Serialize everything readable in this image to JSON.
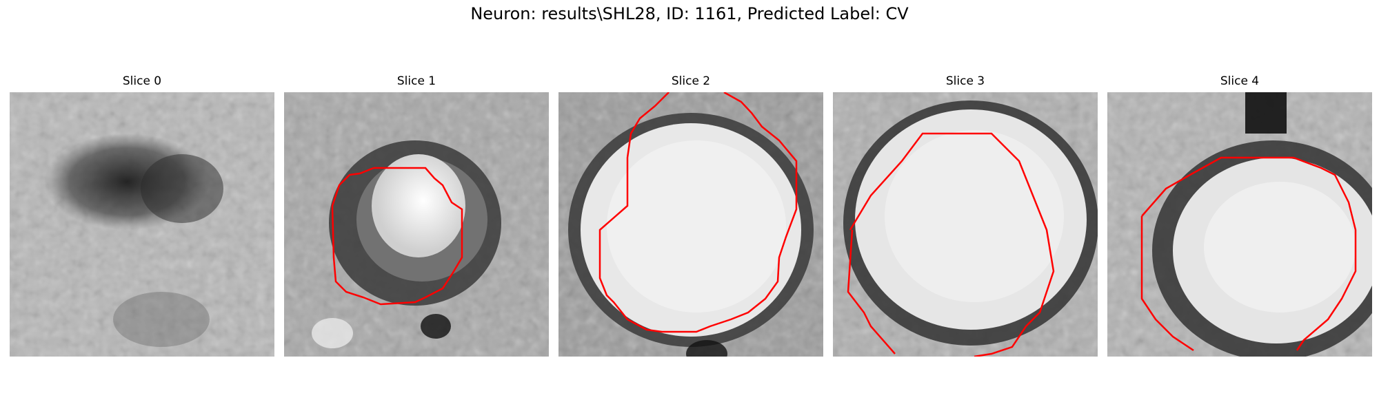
{
  "figure": {
    "title": "Neuron: results\\SHL28, ID: 1161, Predicted Label: CV"
  },
  "panels": [
    {
      "title": "Slice 0"
    },
    {
      "title": "Slice 1"
    },
    {
      "title": "Slice 2"
    },
    {
      "title": "Slice 3"
    },
    {
      "title": "Slice 4"
    }
  ],
  "colors": {
    "contour": "#ff0000",
    "background": "#ffffff"
  }
}
